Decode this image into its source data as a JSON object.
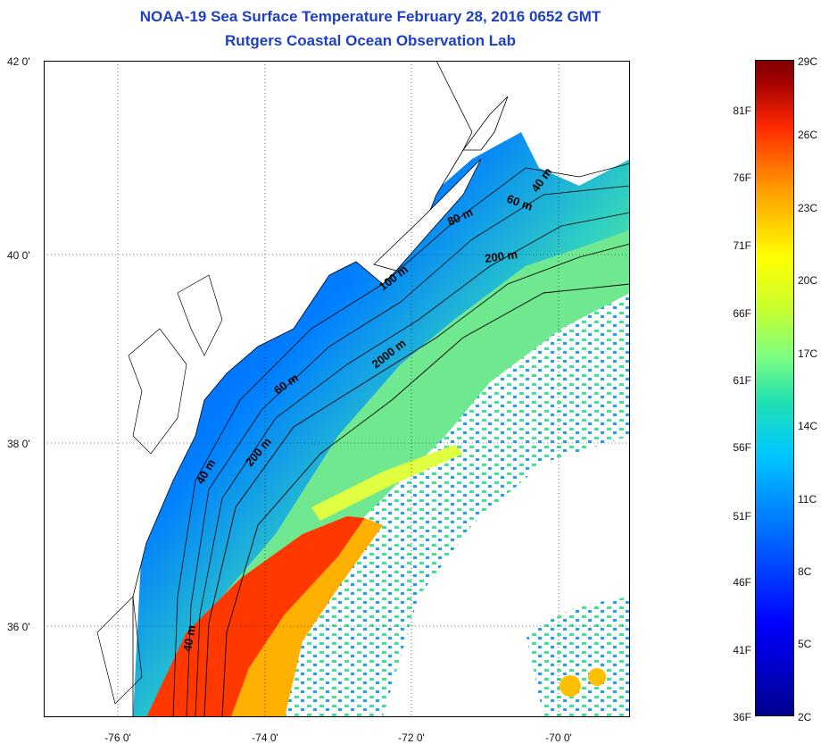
{
  "title": "NOAA-19 Sea Surface Temperature February 28, 2016 0652 GMT",
  "subtitle": "Rutgers Coastal Ocean Observation Lab",
  "lat_ticks": [
    "42 0'",
    "40 0'",
    "38 0'",
    "36 0'"
  ],
  "lon_ticks": [
    "-76 0'",
    "-74 0'",
    "-72 0'",
    "-70 0'"
  ],
  "contours": [
    "40 m",
    "60 m",
    "80 m",
    "100 m",
    "200 m",
    "2000 m",
    "60 m",
    "40 m",
    "200 m",
    "40 m"
  ],
  "colorbar": {
    "fahrenheit": [
      "81F",
      "76F",
      "71F",
      "66F",
      "61F",
      "56F",
      "51F",
      "46F",
      "41F",
      "36F"
    ],
    "celsius": [
      "29C",
      "26C",
      "23C",
      "20C",
      "17C",
      "14C",
      "11C",
      "8C",
      "5C",
      "2C"
    ]
  },
  "colors": {
    "title": "#1f3fc4",
    "warm": "#ff3000",
    "cold": "#0040ff"
  }
}
